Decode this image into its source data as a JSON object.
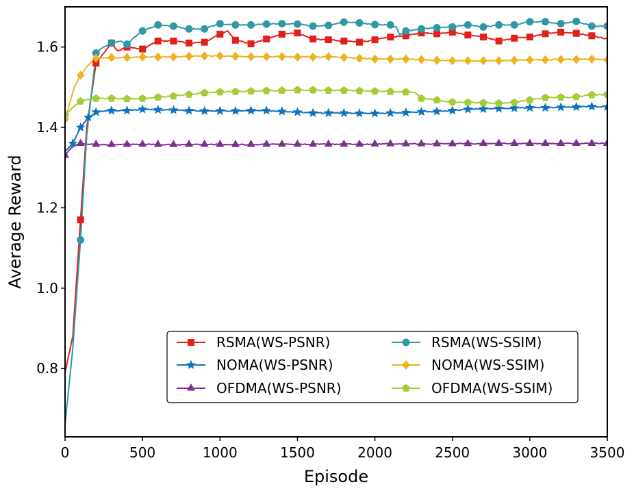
{
  "chart_data": {
    "type": "line",
    "xlabel": "Episode",
    "ylabel": "Average Reward",
    "xlim": [
      0,
      3500
    ],
    "ylim": [
      0.63,
      1.7
    ],
    "grid": false,
    "legend_position": "lower-right",
    "x_ticks": [
      0,
      500,
      1000,
      1500,
      2000,
      2500,
      3000,
      3500
    ],
    "x_tick_labels": [
      "0",
      "500",
      "1000",
      "1500",
      "2000",
      "2500",
      "3000",
      "3500"
    ],
    "y_ticks": [
      0.8,
      1.0,
      1.2,
      1.4,
      1.6
    ],
    "y_tick_labels": [
      "0.8",
      "1.0",
      "1.2",
      "1.4",
      "1.6"
    ],
    "series": [
      {
        "name": "RSMA(WS-PSNR)",
        "color": "#e0201b",
        "marker": "square",
        "x": [
          0,
          50,
          100,
          140,
          200,
          300,
          340,
          400,
          500,
          600,
          700,
          800,
          900,
          1000,
          1050,
          1100,
          1200,
          1300,
          1400,
          1500,
          1600,
          1700,
          1800,
          1900,
          2000,
          2100,
          2200,
          2300,
          2400,
          2500,
          2600,
          2700,
          2800,
          2900,
          3000,
          3100,
          3200,
          3300,
          3400,
          3500
        ],
        "y": [
          0.79,
          0.88,
          1.17,
          1.4,
          1.56,
          1.61,
          1.59,
          1.6,
          1.595,
          1.615,
          1.615,
          1.61,
          1.612,
          1.632,
          1.64,
          1.617,
          1.608,
          1.62,
          1.632,
          1.635,
          1.62,
          1.618,
          1.615,
          1.612,
          1.618,
          1.625,
          1.628,
          1.635,
          1.633,
          1.637,
          1.63,
          1.625,
          1.615,
          1.622,
          1.625,
          1.633,
          1.637,
          1.634,
          1.628,
          1.62
        ],
        "markers_at": [
          100,
          200,
          300,
          400,
          500,
          600,
          700,
          800,
          900,
          1000,
          1100,
          1200,
          1300,
          1400,
          1500,
          1600,
          1700,
          1800,
          1900,
          2000,
          2100,
          2200,
          2300,
          2400,
          2500,
          2600,
          2700,
          2800,
          2900,
          3000,
          3100,
          3200,
          3300,
          3400
        ]
      },
      {
        "name": "NOMA(WS-PSNR)",
        "color": "#0f72bc",
        "marker": "star",
        "x": [
          0,
          50,
          100,
          150,
          200,
          300,
          400,
          500,
          600,
          700,
          800,
          900,
          1000,
          1100,
          1200,
          1300,
          1400,
          1500,
          1600,
          1700,
          1800,
          1900,
          2000,
          2100,
          2200,
          2300,
          2400,
          2500,
          2600,
          2700,
          2800,
          2900,
          3000,
          3100,
          3200,
          3300,
          3400,
          3500
        ],
        "y": [
          1.34,
          1.36,
          1.4,
          1.425,
          1.438,
          1.442,
          1.442,
          1.445,
          1.444,
          1.443,
          1.442,
          1.441,
          1.441,
          1.441,
          1.442,
          1.442,
          1.44,
          1.438,
          1.436,
          1.436,
          1.436,
          1.435,
          1.435,
          1.436,
          1.437,
          1.439,
          1.44,
          1.442,
          1.445,
          1.446,
          1.447,
          1.448,
          1.449,
          1.449,
          1.45,
          1.451,
          1.452,
          1.451
        ],
        "markers_at": [
          50,
          100,
          150,
          200,
          300,
          400,
          500,
          600,
          700,
          800,
          900,
          1000,
          1100,
          1200,
          1300,
          1400,
          1500,
          1600,
          1700,
          1800,
          1900,
          2000,
          2100,
          2200,
          2300,
          2400,
          2500,
          2600,
          2700,
          2800,
          2900,
          3000,
          3100,
          3200,
          3300,
          3400,
          3500
        ]
      },
      {
        "name": "OFDMA(WS-PSNR)",
        "color": "#7e2f8e",
        "marker": "triangle",
        "x": [
          0,
          30,
          60,
          100,
          150,
          300,
          500,
          700,
          900,
          1100,
          1300,
          1500,
          1700,
          1900,
          2100,
          2300,
          2500,
          2700,
          2900,
          3100,
          3300,
          3500
        ],
        "y": [
          1.33,
          1.345,
          1.355,
          1.36,
          1.358,
          1.357,
          1.358,
          1.357,
          1.358,
          1.357,
          1.358,
          1.358,
          1.358,
          1.358,
          1.359,
          1.359,
          1.359,
          1.36,
          1.36,
          1.36,
          1.36,
          1.36
        ],
        "markers_at": [
          0,
          100,
          200,
          300,
          400,
          500,
          600,
          700,
          800,
          900,
          1000,
          1100,
          1200,
          1300,
          1400,
          1500,
          1600,
          1700,
          1800,
          1900,
          2000,
          2100,
          2200,
          2300,
          2400,
          2500,
          2600,
          2700,
          2800,
          2900,
          3000,
          3100,
          3200,
          3300,
          3400,
          3500
        ]
      },
      {
        "name": "RSMA(WS-SSIM)",
        "color": "#2f98a6",
        "marker": "circle",
        "x": [
          0,
          50,
          100,
          140,
          200,
          250,
          300,
          360,
          400,
          450,
          500,
          600,
          700,
          800,
          900,
          1000,
          1100,
          1200,
          1300,
          1400,
          1500,
          1600,
          1700,
          1800,
          1900,
          2000,
          2100,
          2140,
          2160,
          2200,
          2300,
          2400,
          2500,
          2600,
          2700,
          2800,
          2900,
          3000,
          3100,
          3200,
          3300,
          3400,
          3500
        ],
        "y": [
          0.66,
          0.85,
          1.12,
          1.38,
          1.585,
          1.6,
          1.61,
          1.615,
          1.607,
          1.625,
          1.64,
          1.655,
          1.652,
          1.645,
          1.645,
          1.658,
          1.655,
          1.655,
          1.657,
          1.658,
          1.657,
          1.652,
          1.654,
          1.662,
          1.66,
          1.656,
          1.655,
          1.648,
          1.63,
          1.64,
          1.645,
          1.648,
          1.65,
          1.655,
          1.65,
          1.655,
          1.655,
          1.663,
          1.663,
          1.658,
          1.664,
          1.652,
          1.652
        ],
        "markers_at": [
          100,
          200,
          300,
          400,
          500,
          600,
          700,
          800,
          900,
          1000,
          1100,
          1200,
          1300,
          1400,
          1500,
          1600,
          1700,
          1800,
          1900,
          2000,
          2100,
          2200,
          2300,
          2400,
          2500,
          2600,
          2700,
          2800,
          2900,
          3000,
          3100,
          3200,
          3300,
          3400,
          3500
        ]
      },
      {
        "name": "NOMA(WS-SSIM)",
        "color": "#eeb11f",
        "marker": "diamond",
        "x": [
          0,
          30,
          60,
          100,
          150,
          200,
          300,
          400,
          500,
          600,
          700,
          800,
          900,
          1000,
          1100,
          1200,
          1300,
          1400,
          1500,
          1600,
          1700,
          1800,
          1900,
          2000,
          2100,
          2200,
          2300,
          2400,
          2500,
          2600,
          2700,
          2800,
          2900,
          3000,
          3100,
          3200,
          3300,
          3400,
          3500
        ],
        "y": [
          1.42,
          1.46,
          1.5,
          1.53,
          1.555,
          1.572,
          1.574,
          1.574,
          1.575,
          1.575,
          1.575,
          1.577,
          1.578,
          1.578,
          1.577,
          1.576,
          1.576,
          1.576,
          1.575,
          1.575,
          1.576,
          1.574,
          1.572,
          1.57,
          1.57,
          1.57,
          1.569,
          1.567,
          1.566,
          1.566,
          1.566,
          1.566,
          1.567,
          1.568,
          1.568,
          1.569,
          1.569,
          1.57,
          1.568
        ],
        "markers_at": [
          0,
          100,
          200,
          300,
          400,
          500,
          600,
          700,
          800,
          900,
          1000,
          1100,
          1200,
          1300,
          1400,
          1500,
          1600,
          1700,
          1800,
          1900,
          2000,
          2100,
          2200,
          2300,
          2400,
          2500,
          2600,
          2700,
          2800,
          2900,
          3000,
          3100,
          3200,
          3300,
          3400,
          3500
        ]
      },
      {
        "name": "OFDMA(WS-SSIM)",
        "color": "#a5cc36",
        "marker": "pentagon",
        "x": [
          0,
          50,
          100,
          150,
          200,
          300,
          400,
          500,
          600,
          700,
          800,
          900,
          1000,
          1100,
          1200,
          1300,
          1400,
          1500,
          1600,
          1700,
          1800,
          1900,
          2000,
          2100,
          2200,
          2260,
          2300,
          2400,
          2500,
          2600,
          2700,
          2800,
          2900,
          3000,
          3100,
          3200,
          3300,
          3400,
          3500
        ],
        "y": [
          1.43,
          1.45,
          1.465,
          1.47,
          1.472,
          1.472,
          1.471,
          1.472,
          1.475,
          1.478,
          1.482,
          1.486,
          1.488,
          1.489,
          1.49,
          1.491,
          1.492,
          1.493,
          1.493,
          1.492,
          1.492,
          1.491,
          1.49,
          1.489,
          1.488,
          1.487,
          1.472,
          1.468,
          1.463,
          1.462,
          1.461,
          1.46,
          1.462,
          1.468,
          1.474,
          1.475,
          1.476,
          1.481,
          1.482
        ],
        "markers_at": [
          0,
          100,
          200,
          300,
          400,
          500,
          600,
          700,
          800,
          900,
          1000,
          1100,
          1200,
          1300,
          1400,
          1500,
          1600,
          1700,
          1800,
          1900,
          2000,
          2100,
          2200,
          2300,
          2400,
          2500,
          2600,
          2700,
          2800,
          2900,
          3000,
          3100,
          3200,
          3300,
          3400,
          3500
        ]
      }
    ]
  }
}
